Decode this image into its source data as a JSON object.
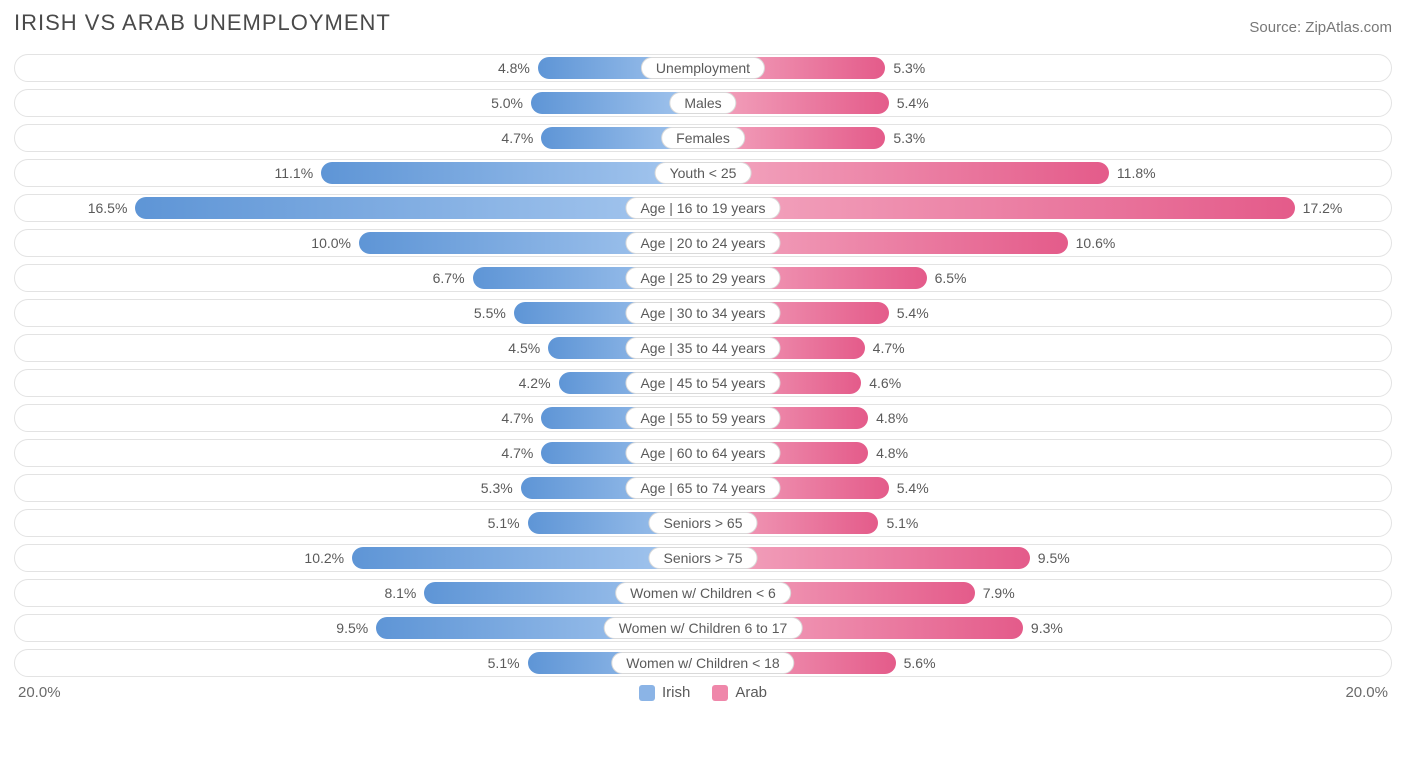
{
  "title": "IRISH VS ARAB UNEMPLOYMENT",
  "source_prefix": "Source: ",
  "source_name": "ZipAtlas.com",
  "chart": {
    "type": "diverging-bar",
    "axis_max_percent": 20.0,
    "axis_left_label": "20.0%",
    "axis_right_label": "20.0%",
    "track_border_color": "#e3e3e3",
    "track_bg_color": "#ffffff",
    "pill_border_color": "#d9d9d9",
    "text_color": "#5a5a5a",
    "value_fontsize": 14,
    "category_fontsize": 14,
    "title_fontsize": 22,
    "bar_gradients": {
      "left": {
        "inner": "#a7c8ef",
        "outer": "#5e95d6"
      },
      "right": {
        "inner": "#f3a7c0",
        "outer": "#e45b8a"
      }
    },
    "series": [
      {
        "key": "irish",
        "label": "Irish",
        "swatch_color": "#8bb4e6"
      },
      {
        "key": "arab",
        "label": "Arab",
        "swatch_color": "#ef87aa"
      }
    ],
    "rows": [
      {
        "category": "Unemployment",
        "left_value": 4.8,
        "left_label": "4.8%",
        "right_value": 5.3,
        "right_label": "5.3%"
      },
      {
        "category": "Males",
        "left_value": 5.0,
        "left_label": "5.0%",
        "right_value": 5.4,
        "right_label": "5.4%"
      },
      {
        "category": "Females",
        "left_value": 4.7,
        "left_label": "4.7%",
        "right_value": 5.3,
        "right_label": "5.3%"
      },
      {
        "category": "Youth < 25",
        "left_value": 11.1,
        "left_label": "11.1%",
        "right_value": 11.8,
        "right_label": "11.8%"
      },
      {
        "category": "Age | 16 to 19 years",
        "left_value": 16.5,
        "left_label": "16.5%",
        "right_value": 17.2,
        "right_label": "17.2%"
      },
      {
        "category": "Age | 20 to 24 years",
        "left_value": 10.0,
        "left_label": "10.0%",
        "right_value": 10.6,
        "right_label": "10.6%"
      },
      {
        "category": "Age | 25 to 29 years",
        "left_value": 6.7,
        "left_label": "6.7%",
        "right_value": 6.5,
        "right_label": "6.5%"
      },
      {
        "category": "Age | 30 to 34 years",
        "left_value": 5.5,
        "left_label": "5.5%",
        "right_value": 5.4,
        "right_label": "5.4%"
      },
      {
        "category": "Age | 35 to 44 years",
        "left_value": 4.5,
        "left_label": "4.5%",
        "right_value": 4.7,
        "right_label": "4.7%"
      },
      {
        "category": "Age | 45 to 54 years",
        "left_value": 4.2,
        "left_label": "4.2%",
        "right_value": 4.6,
        "right_label": "4.6%"
      },
      {
        "category": "Age | 55 to 59 years",
        "left_value": 4.7,
        "left_label": "4.7%",
        "right_value": 4.8,
        "right_label": "4.8%"
      },
      {
        "category": "Age | 60 to 64 years",
        "left_value": 4.7,
        "left_label": "4.7%",
        "right_value": 4.8,
        "right_label": "4.8%"
      },
      {
        "category": "Age | 65 to 74 years",
        "left_value": 5.3,
        "left_label": "5.3%",
        "right_value": 5.4,
        "right_label": "5.4%"
      },
      {
        "category": "Seniors > 65",
        "left_value": 5.1,
        "left_label": "5.1%",
        "right_value": 5.1,
        "right_label": "5.1%"
      },
      {
        "category": "Seniors > 75",
        "left_value": 10.2,
        "left_label": "10.2%",
        "right_value": 9.5,
        "right_label": "9.5%"
      },
      {
        "category": "Women w/ Children < 6",
        "left_value": 8.1,
        "left_label": "8.1%",
        "right_value": 7.9,
        "right_label": "7.9%"
      },
      {
        "category": "Women w/ Children 6 to 17",
        "left_value": 9.5,
        "left_label": "9.5%",
        "right_value": 9.3,
        "right_label": "9.3%"
      },
      {
        "category": "Women w/ Children < 18",
        "left_value": 5.1,
        "left_label": "5.1%",
        "right_value": 5.6,
        "right_label": "5.6%"
      }
    ]
  }
}
